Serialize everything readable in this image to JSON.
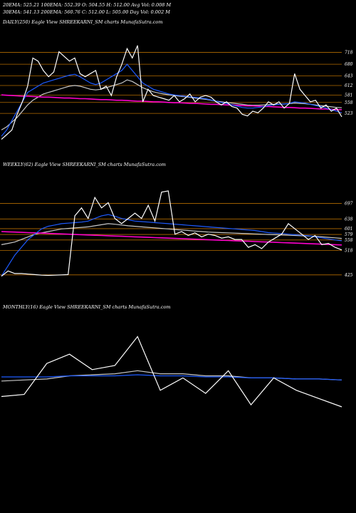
{
  "header": {
    "line1": "20EMA: 525.21     100EMA: 552.39     O: 504.55     H: 512.00     Avg Vol: 0.008  M",
    "line2": "30EMA: 541.13     200EMA: 560.76     C: 512.00     L: 505.00     Day Vol: 0.002  M"
  },
  "panels": [
    {
      "label": "DAILY(250) Eagle  View  SHREEKARNI_SM charts MunafaSutra.com"
    },
    {
      "label": "WEEKLY(62) Eagle  View  SHREEKARNI_SM charts MunafaSutra.com"
    },
    {
      "label": "MONTHLY(16) Eagle  View  SHREEKARNI_SM charts MunafaSutra.com"
    }
  ],
  "colors": {
    "price": "#ffffff",
    "ema_fast": "#1e5bff",
    "ema_slow": "#c8c8c8",
    "support_line": "#b36b00",
    "magenta": "#ff00cc"
  },
  "chart_data": [
    {
      "type": "line",
      "name": "daily",
      "ylim": [
        430,
        760
      ],
      "y_ticks": [
        718,
        680,
        643,
        612,
        581,
        558,
        523
      ],
      "series": [
        {
          "role": "price",
          "values": [
            440,
            455,
            470,
            520,
            560,
            610,
            700,
            690,
            660,
            640,
            655,
            720,
            705,
            690,
            700,
            650,
            640,
            650,
            660,
            600,
            610,
            580,
            640,
            680,
            730,
            700,
            740,
            560,
            600,
            580,
            575,
            570,
            565,
            580,
            560,
            570,
            585,
            560,
            575,
            580,
            575,
            560,
            550,
            560,
            545,
            540,
            520,
            515,
            530,
            525,
            540,
            560,
            550,
            560,
            540,
            555,
            650,
            600,
            580,
            560,
            565,
            540,
            550,
            530,
            540,
            512
          ]
        },
        {
          "role": "ema_fast",
          "values": [
            450,
            470,
            500,
            530,
            560,
            590,
            600,
            610,
            620,
            625,
            630,
            635,
            640,
            645,
            648,
            640,
            630,
            620,
            615,
            620,
            630,
            640,
            650,
            660,
            680,
            660,
            640,
            620,
            610,
            600,
            595,
            590,
            585,
            582,
            580,
            578,
            576,
            574,
            572,
            570,
            566,
            562,
            558,
            555,
            550,
            546,
            542,
            540,
            540,
            542,
            544,
            548,
            550,
            552,
            553,
            555,
            560,
            558,
            556,
            552,
            548,
            545,
            540,
            535,
            530,
            525
          ]
        },
        {
          "role": "ema_slow",
          "values": [
            470,
            480,
            495,
            510,
            530,
            550,
            565,
            575,
            585,
            590,
            595,
            600,
            605,
            610,
            612,
            610,
            605,
            600,
            598,
            600,
            605,
            610,
            615,
            620,
            630,
            625,
            615,
            605,
            598,
            592,
            588,
            585,
            582,
            580,
            578,
            576,
            574,
            572,
            570,
            568,
            565,
            562,
            560,
            558,
            556,
            554,
            552,
            550,
            549,
            549,
            550,
            551,
            552,
            553,
            553,
            554,
            556,
            555,
            554,
            552,
            550,
            548,
            546,
            544,
            542,
            541
          ]
        },
        {
          "role": "magenta",
          "values": [
            582,
            581,
            580,
            579,
            578,
            578,
            577,
            576,
            575,
            575,
            574,
            573,
            572,
            572,
            571,
            570,
            570,
            569,
            568,
            567,
            567,
            566,
            565,
            565,
            564,
            563,
            562,
            562,
            561,
            560,
            560,
            559,
            558,
            557,
            557,
            556,
            555,
            555,
            554,
            553,
            552,
            552,
            551,
            550,
            550,
            549,
            548,
            547,
            547,
            546,
            545,
            545,
            544,
            543,
            542,
            542,
            541,
            540,
            540,
            539,
            538,
            537,
            537,
            536,
            535,
            535
          ]
        }
      ]
    },
    {
      "type": "line",
      "name": "weekly",
      "ylim": [
        400,
        780
      ],
      "y_ticks": [
        697,
        638,
        601,
        579,
        558,
        518,
        425
      ],
      "series": [
        {
          "role": "price",
          "values": [
            420,
            440,
            430,
            430,
            428,
            426,
            424,
            423,
            424,
            425,
            426,
            650,
            680,
            640,
            720,
            680,
            700,
            640,
            620,
            640,
            660,
            640,
            690,
            630,
            740,
            745,
            580,
            590,
            575,
            585,
            570,
            580,
            575,
            565,
            570,
            560,
            560,
            530,
            540,
            525,
            550,
            565,
            580,
            620,
            600,
            580,
            560,
            575,
            540,
            545,
            530,
            520
          ]
        },
        {
          "role": "ema_fast",
          "values": [
            420,
            460,
            500,
            530,
            560,
            580,
            600,
            610,
            615,
            620,
            622,
            624,
            626,
            630,
            640,
            650,
            655,
            648,
            640,
            635,
            630,
            628,
            626,
            624,
            622,
            620,
            618,
            616,
            614,
            612,
            610,
            608,
            606,
            604,
            602,
            600,
            598,
            596,
            594,
            590,
            586,
            584,
            582,
            580,
            578,
            576,
            574,
            570,
            566,
            562,
            558,
            555
          ]
        },
        {
          "role": "ema_slow",
          "values": [
            540,
            545,
            550,
            560,
            570,
            580,
            585,
            590,
            595,
            600,
            602,
            604,
            606,
            608,
            612,
            616,
            620,
            618,
            615,
            612,
            610,
            608,
            606,
            604,
            602,
            600,
            598,
            596,
            594,
            592,
            590,
            588,
            587,
            586,
            585,
            584,
            583,
            582,
            581,
            580,
            579,
            578,
            577,
            576,
            575,
            574,
            573,
            572,
            570,
            568,
            566,
            564
          ]
        },
        {
          "role": "magenta",
          "values": [
            590,
            589,
            588,
            587,
            586,
            585,
            584,
            583,
            582,
            581,
            580,
            579,
            578,
            577,
            576,
            575,
            574,
            573,
            572,
            571,
            570,
            569,
            568,
            567,
            566,
            565,
            564,
            563,
            562,
            561,
            560,
            559,
            558,
            557,
            556,
            555,
            554,
            553,
            552,
            551,
            550,
            549,
            548,
            547,
            546,
            545,
            544,
            543,
            542,
            541,
            540,
            539
          ]
        }
      ]
    },
    {
      "type": "line",
      "name": "monthly",
      "ylim": [
        0,
        1
      ],
      "series": [
        {
          "role": "price",
          "values": [
            0.3,
            0.32,
            0.62,
            0.71,
            0.56,
            0.6,
            0.88,
            0.36,
            0.48,
            0.33,
            0.55,
            0.22,
            0.48,
            0.36,
            0.28,
            0.2
          ]
        },
        {
          "role": "ema_fast",
          "values": [
            0.49,
            0.49,
            0.49,
            0.5,
            0.5,
            0.5,
            0.51,
            0.5,
            0.5,
            0.49,
            0.49,
            0.48,
            0.48,
            0.47,
            0.47,
            0.46
          ]
        },
        {
          "role": "ema_slow",
          "values": [
            0.45,
            0.46,
            0.47,
            0.5,
            0.51,
            0.52,
            0.55,
            0.52,
            0.52,
            0.5,
            0.5,
            0.48,
            0.48,
            0.47,
            0.47,
            0.46
          ]
        }
      ]
    }
  ]
}
